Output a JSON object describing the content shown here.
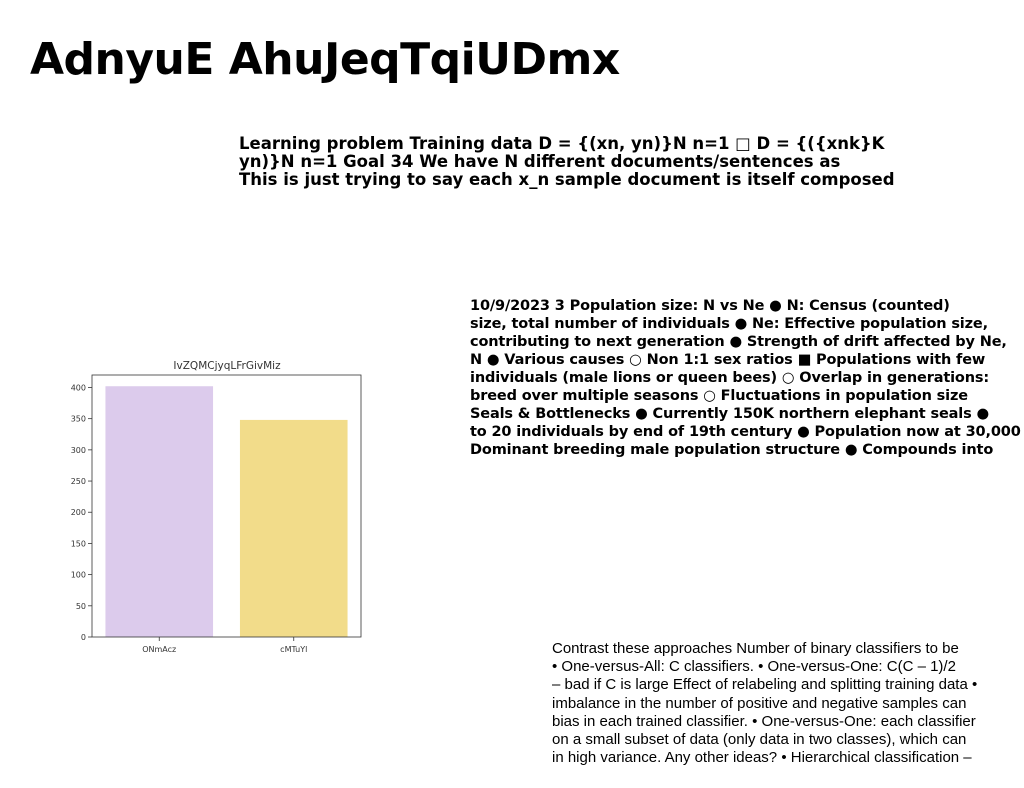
{
  "page": {
    "title": "AdnyuE AhuJeqTqiUDmx"
  },
  "blocks": {
    "learning": [
      "Learning problem Training data D = {(xn, yn)}N n=1 □ D = {({xnk}K",
      "yn)}N n=1 Goal 34 We have N different documents/sentences as",
      "This is just trying to say each x_n sample document is itself composed"
    ],
    "population": [
      "10/9/2023 3 Population size: N vs Ne ● N: Census (counted)",
      "size, total number of individuals ● Ne: Effective population size,",
      "contributing to next generation ● Strength of drift affected by Ne,",
      "N ● Various causes ○ Non 1:1 sex ratios ■ Populations with few",
      "individuals (male lions or queen bees) ○ Overlap in generations:",
      "breed over multiple seasons ○ Fluctuations in population size",
      "Seals & Bottlenecks ● Currently 150K northern elephant seals ●",
      "to 20 individuals by end of 19th century ● Population now at 30,000",
      "Dominant breeding male population structure ● Compounds into"
    ],
    "classifiers": [
      "Contrast these approaches Number of binary classifiers to be",
      "• One-versus-All: C classifiers. • One-versus-One: C(C – 1)/2",
      "– bad if C is large Effect of relabeling and splitting training data •",
      "imbalance in the number of positive and negative samples can",
      "bias in each trained classifier. • One-versus-One: each classifier",
      "on a small subset of data (only data in two classes), which can",
      "in high variance. Any other ideas? • Hierarchical classification –"
    ]
  },
  "chart_data": {
    "type": "bar",
    "title": "IvZQMCjyqLFrGivMiz",
    "categories": [
      "ONmAcz",
      "cMTuYl"
    ],
    "values": [
      402,
      348
    ],
    "colors": [
      "#dccbec",
      "#f2dc8a"
    ],
    "ylim": [
      0,
      420
    ],
    "yticks": [
      0,
      50,
      100,
      150,
      200,
      250,
      300,
      350,
      400
    ],
    "grid": false,
    "xlabel": "",
    "ylabel": ""
  }
}
